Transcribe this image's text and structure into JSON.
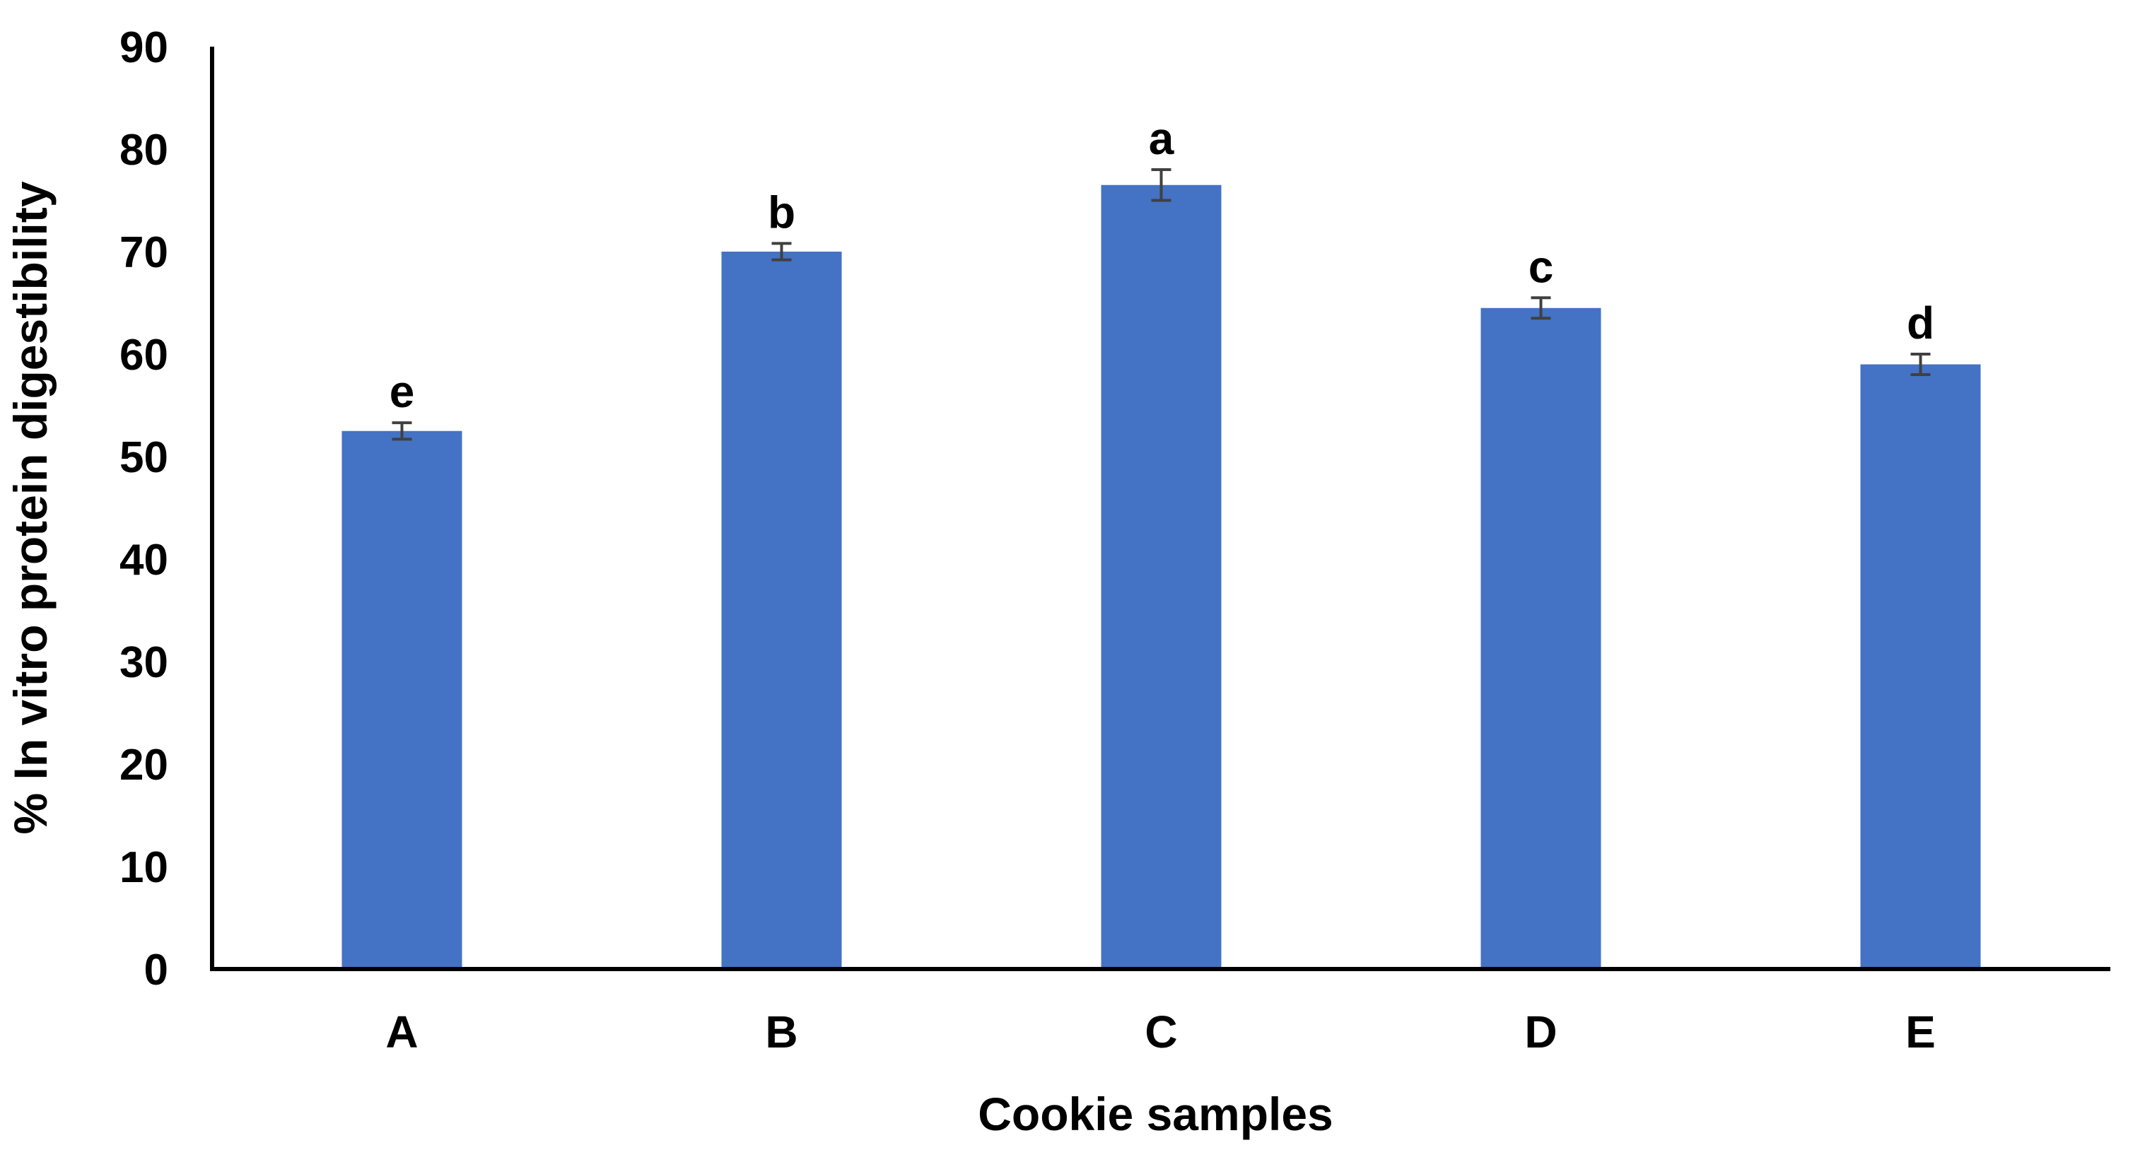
{
  "chart_data": {
    "type": "bar",
    "title": "",
    "xlabel": "Cookie samples",
    "ylabel": "% In vitro protein digestibility",
    "ylim": [
      0,
      90
    ],
    "yticks": [
      0,
      10,
      20,
      30,
      40,
      50,
      60,
      70,
      80,
      90
    ],
    "grid": false,
    "legend": "none",
    "categories": [
      "A",
      "B",
      "C",
      "D",
      "E"
    ],
    "values": [
      52.5,
      70.0,
      76.5,
      64.5,
      59.0
    ],
    "errors": [
      0.8,
      0.8,
      1.5,
      1.0,
      1.0
    ],
    "significance_letters": [
      "e",
      "b",
      "a",
      "c",
      "d"
    ],
    "bar_color": "#4472C4",
    "axis_color": "#000000",
    "errorbar_color": "#404040"
  }
}
